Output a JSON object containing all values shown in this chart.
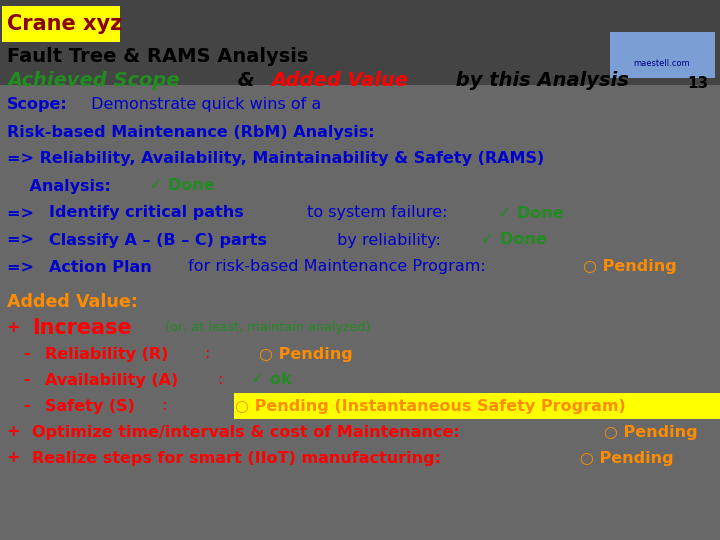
{
  "title_box_text": "Crane xyz",
  "title_box_bg": "#FFFF00",
  "title_box_color": "#8B0000",
  "line2_text": "Fault Tree & RAMS Analysis",
  "line2_color": "#000000",
  "page_num": "13",
  "page_num_color": "#000000",
  "logo_box_color": "#7B9FD4",
  "logo_text": "maestell.com",
  "logo_text_color": "#00008B",
  "scope_lines": [
    {
      "parts": [
        {
          "text": "Scope:",
          "color": "#0000CD",
          "weight": "bold"
        },
        {
          "text": " Demonstrate quick wins of a",
          "color": "#0000CD",
          "weight": "normal"
        }
      ]
    },
    {
      "parts": [
        {
          "text": "Risk-based Maintenance (RbM) Analysis:",
          "color": "#0000CD",
          "weight": "bold"
        }
      ]
    },
    {
      "parts": [
        {
          "text": "=> Reliability, Availability, Maintainability & Safety (RAMS)",
          "color": "#0000CD",
          "weight": "bold"
        }
      ]
    },
    {
      "parts": [
        {
          "text": "    Analysis: ",
          "color": "#0000CD",
          "weight": "bold"
        },
        {
          "text": "✓ Done",
          "color": "#228B22",
          "weight": "bold"
        }
      ]
    },
    {
      "parts": [
        {
          "text": "=> ",
          "color": "#0000CD",
          "weight": "bold"
        },
        {
          "text": "Identify critical paths",
          "color": "#0000CD",
          "weight": "bold"
        },
        {
          "text": " to system failure: ",
          "color": "#0000CD",
          "weight": "normal"
        },
        {
          "text": "✓ Done",
          "color": "#228B22",
          "weight": "bold"
        }
      ]
    },
    {
      "parts": [
        {
          "text": "=> ",
          "color": "#0000CD",
          "weight": "bold"
        },
        {
          "text": "Classify A – (B – C) parts",
          "color": "#0000CD",
          "weight": "bold"
        },
        {
          "text": " by reliability: ",
          "color": "#0000CD",
          "weight": "normal"
        },
        {
          "text": "✓ Done",
          "color": "#228B22",
          "weight": "bold"
        }
      ]
    },
    {
      "parts": [
        {
          "text": "=> ",
          "color": "#0000CD",
          "weight": "bold"
        },
        {
          "text": "Action Plan",
          "color": "#0000CD",
          "weight": "bold"
        },
        {
          "text": " for risk-based Maintenance Program: ",
          "color": "#0000CD",
          "weight": "normal"
        },
        {
          "text": "○ Pending",
          "color": "#FF8C00",
          "weight": "bold"
        }
      ]
    }
  ],
  "added_value_lines": [
    {
      "parts": [
        {
          "text": "Added Value:",
          "color": "#FF8C00",
          "weight": "bold",
          "size_rel": 1.1
        }
      ]
    },
    {
      "parts": [
        {
          "text": "+ ",
          "color": "#FF0000",
          "weight": "bold",
          "size_rel": 1.0
        },
        {
          "text": "Increase",
          "color": "#FF0000",
          "weight": "bold",
          "size_rel": 1.3
        },
        {
          "text": " (or, at least, maintain analyzed)",
          "color": "#228B22",
          "weight": "normal",
          "size_rel": 0.8
        }
      ]
    },
    {
      "parts": [
        {
          "text": "   - ",
          "color": "#FF0000",
          "weight": "bold",
          "size_rel": 1.0
        },
        {
          "text": "Reliability (R)",
          "color": "#FF0000",
          "weight": "bold",
          "size_rel": 1.0
        },
        {
          "text": ":       ",
          "color": "#FF0000",
          "weight": "normal",
          "size_rel": 1.0
        },
        {
          "text": "○ Pending",
          "color": "#FF8C00",
          "weight": "bold",
          "size_rel": 1.0
        }
      ]
    },
    {
      "parts": [
        {
          "text": "   - ",
          "color": "#FF0000",
          "weight": "bold",
          "size_rel": 1.0
        },
        {
          "text": "Availability (A)",
          "color": "#FF0000",
          "weight": "bold",
          "size_rel": 1.0
        },
        {
          "text": ":    ",
          "color": "#FF0000",
          "weight": "normal",
          "size_rel": 1.0
        },
        {
          "text": "✓ ok",
          "color": "#228B22",
          "weight": "bold",
          "size_rel": 1.0
        }
      ]
    },
    {
      "parts": [
        {
          "text": "   - ",
          "color": "#FF0000",
          "weight": "bold",
          "size_rel": 1.0
        },
        {
          "text": "Safety (S)",
          "color": "#FF0000",
          "weight": "bold",
          "size_rel": 1.0
        },
        {
          "text": ":          ",
          "color": "#FF0000",
          "weight": "normal",
          "size_rel": 1.0
        },
        {
          "text": "○ Pending (Instantaneous Safety Program)",
          "color": "#FF8C00",
          "weight": "bold",
          "size_rel": 1.0,
          "highlight": "#FFFF00"
        }
      ]
    },
    {
      "parts": [
        {
          "text": "+ ",
          "color": "#FF0000",
          "weight": "bold",
          "size_rel": 1.0
        },
        {
          "text": "Optimize time/intervals & cost of Maintenance:",
          "color": "#FF0000",
          "weight": "bold",
          "size_rel": 1.0
        },
        {
          "text": "   ○ Pending",
          "color": "#FF8C00",
          "weight": "bold",
          "size_rel": 1.0
        }
      ]
    },
    {
      "parts": [
        {
          "text": "+ ",
          "color": "#FF0000",
          "weight": "bold",
          "size_rel": 1.0
        },
        {
          "text": "Realize steps for smart (IIoT) manufacturing:",
          "color": "#FF0000",
          "weight": "bold",
          "size_rel": 1.0
        },
        {
          "text": "   ○ Pending",
          "color": "#FF8C00",
          "weight": "bold",
          "size_rel": 1.0
        }
      ]
    }
  ]
}
